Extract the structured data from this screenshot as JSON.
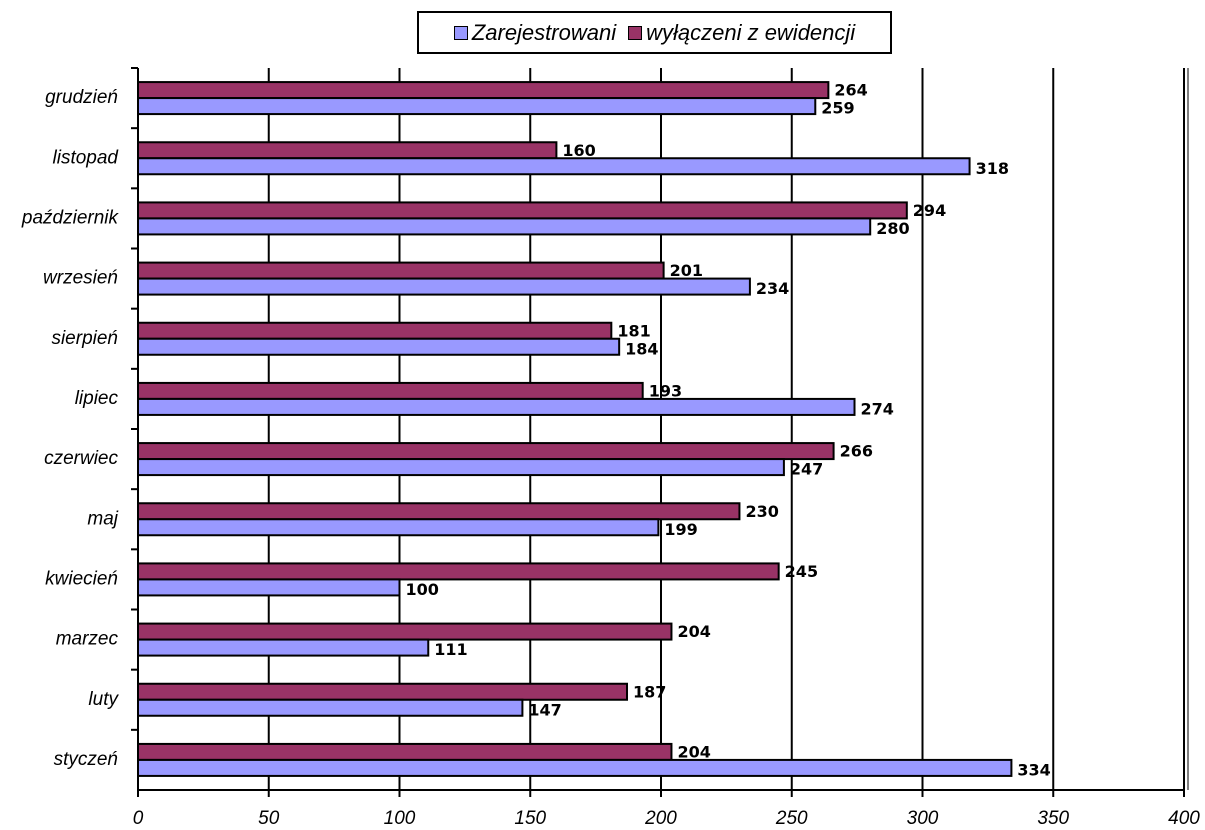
{
  "chart_data": {
    "type": "bar",
    "orientation": "horizontal",
    "title": "",
    "xlabel": "",
    "ylabel": "",
    "categories": [
      "styczeń",
      "luty",
      "marzec",
      "kwiecień",
      "maj",
      "czerwiec",
      "lipiec",
      "sierpień",
      "wrzesień",
      "październik",
      "listopad",
      "grudzień"
    ],
    "series": [
      {
        "name": "Zarejestrowani",
        "color": "#9999ff",
        "values": [
          334,
          147,
          111,
          100,
          199,
          247,
          274,
          184,
          234,
          280,
          318,
          259
        ]
      },
      {
        "name": "wyłączeni z ewidencji",
        "color": "#993366",
        "values": [
          204,
          187,
          204,
          245,
          230,
          266,
          193,
          181,
          201,
          294,
          160,
          264
        ]
      }
    ],
    "xlim": [
      0,
      400
    ],
    "xticks": [
      "0",
      "50",
      "100",
      "150",
      "200",
      "250",
      "300",
      "350",
      "400"
    ],
    "grid": "vertical major",
    "legend_position": "top"
  }
}
